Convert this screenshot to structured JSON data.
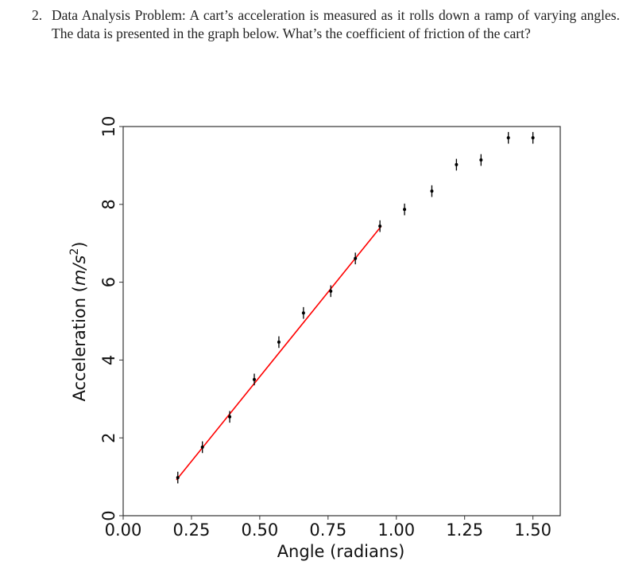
{
  "question": {
    "number": "2.",
    "text": "Data Analysis Problem: A cart’s acceleration is measured as it rolls down a ramp of varying angles. The data is presented in the graph below. What’s the coefficient of friction of the cart?"
  },
  "chart_data": {
    "type": "scatter",
    "title": "",
    "xlabel": "Angle (radians)",
    "ylabel": "Acceleration (m/s²)",
    "xlim": [
      0,
      1.6
    ],
    "ylim": [
      0,
      10
    ],
    "xticks": [
      "0.00",
      "0.25",
      "0.50",
      "0.75",
      "1.00",
      "1.25",
      "1.50"
    ],
    "yticks": [
      "0",
      "2",
      "4",
      "6",
      "8",
      "10"
    ],
    "grid": false,
    "legend": null,
    "series": [
      {
        "name": "measured",
        "marker": "point with vertical error bar",
        "color": "#000000",
        "x": [
          0.2,
          0.29,
          0.39,
          0.48,
          0.57,
          0.66,
          0.76,
          0.85,
          0.94,
          1.03,
          1.13,
          1.22,
          1.31,
          1.41,
          1.5
        ],
        "y": [
          0.98,
          1.76,
          2.54,
          3.5,
          4.46,
          5.21,
          5.77,
          6.61,
          7.44,
          7.87,
          8.34,
          9.02,
          9.14,
          9.71,
          9.71
        ],
        "yerr": 0.15
      },
      {
        "name": "linear fit",
        "type": "line",
        "color": "#ff0000",
        "x": [
          0.195,
          0.945
        ],
        "y": [
          0.92,
          7.44
        ]
      }
    ]
  }
}
